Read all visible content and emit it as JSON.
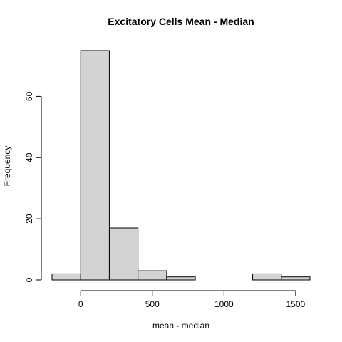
{
  "chart_data": {
    "type": "bar",
    "title": "Excitatory Cells Mean - Median",
    "xlabel": "mean - median",
    "ylabel": "Frequency",
    "bins": [
      {
        "from": -200,
        "to": 0,
        "count": 2
      },
      {
        "from": 0,
        "to": 200,
        "count": 75
      },
      {
        "from": 200,
        "to": 400,
        "count": 17
      },
      {
        "from": 400,
        "to": 600,
        "count": 3
      },
      {
        "from": 600,
        "to": 800,
        "count": 1
      },
      {
        "from": 800,
        "to": 1000,
        "count": 0
      },
      {
        "from": 1000,
        "to": 1200,
        "count": 0
      },
      {
        "from": 1200,
        "to": 1400,
        "count": 2
      },
      {
        "from": 1400,
        "to": 1600,
        "count": 1
      }
    ],
    "xlim": [
      -200,
      1600
    ],
    "ylim": [
      0,
      75
    ],
    "x_ticks": [
      0,
      500,
      1000,
      1500
    ],
    "y_ticks": [
      0,
      20,
      40,
      60
    ],
    "grid": false,
    "legend": "none",
    "colors": {
      "bar_fill": "#d3d3d3",
      "bar_stroke": "#000000",
      "axis": "#000000",
      "background": "#ffffff"
    }
  }
}
